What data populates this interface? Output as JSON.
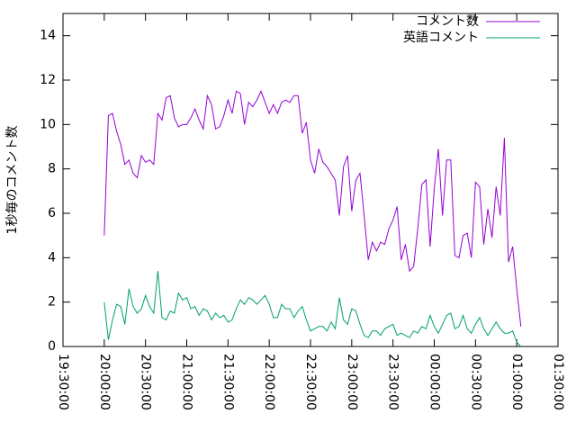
{
  "chart_data": {
    "type": "line",
    "ylabel": "1秒毎のコメント数",
    "x": [
      "20:00:00",
      "20:03:00",
      "20:06:00",
      "20:09:00",
      "20:12:00",
      "20:15:00",
      "20:18:00",
      "20:21:00",
      "20:24:00",
      "20:27:00",
      "20:30:00",
      "20:33:00",
      "20:36:00",
      "20:39:00",
      "20:42:00",
      "20:45:00",
      "20:48:00",
      "20:51:00",
      "20:54:00",
      "20:57:00",
      "21:00:00",
      "21:03:00",
      "21:06:00",
      "21:09:00",
      "21:12:00",
      "21:15:00",
      "21:18:00",
      "21:21:00",
      "21:24:00",
      "21:27:00",
      "21:30:00",
      "21:33:00",
      "21:36:00",
      "21:39:00",
      "21:42:00",
      "21:45:00",
      "21:48:00",
      "21:51:00",
      "21:54:00",
      "21:57:00",
      "22:00:00",
      "22:03:00",
      "22:06:00",
      "22:09:00",
      "22:12:00",
      "22:15:00",
      "22:18:00",
      "22:21:00",
      "22:24:00",
      "22:27:00",
      "22:30:00",
      "22:33:00",
      "22:36:00",
      "22:39:00",
      "22:42:00",
      "22:45:00",
      "22:48:00",
      "22:51:00",
      "22:54:00",
      "22:57:00",
      "23:00:00",
      "23:03:00",
      "23:06:00",
      "23:09:00",
      "23:12:00",
      "23:15:00",
      "23:18:00",
      "23:21:00",
      "23:24:00",
      "23:27:00",
      "23:30:00",
      "23:33:00",
      "23:36:00",
      "23:39:00",
      "23:42:00",
      "23:45:00",
      "23:48:00",
      "23:51:00",
      "23:54:00",
      "23:57:00",
      "00:00:00",
      "00:03:00",
      "00:06:00",
      "00:09:00",
      "00:12:00",
      "00:15:00",
      "00:18:00",
      "00:21:00",
      "00:24:00",
      "00:27:00",
      "00:30:00",
      "00:33:00",
      "00:36:00",
      "00:39:00",
      "00:42:00",
      "00:45:00",
      "00:48:00",
      "00:51:00",
      "00:54:00",
      "00:57:00",
      "01:00:00",
      "01:03:00"
    ],
    "series": [
      {
        "name": "コメント数",
        "color": "#9400d3",
        "values": [
          5.0,
          10.4,
          10.5,
          9.7,
          9.1,
          8.2,
          8.4,
          7.8,
          7.6,
          8.6,
          8.3,
          8.4,
          8.2,
          10.5,
          10.2,
          11.2,
          11.3,
          10.3,
          9.9,
          10.0,
          10.0,
          10.3,
          10.7,
          10.2,
          9.8,
          11.3,
          10.9,
          9.8,
          9.9,
          10.4,
          11.1,
          10.5,
          11.5,
          11.4,
          10.0,
          11.0,
          10.8,
          11.1,
          11.5,
          11.0,
          10.5,
          10.9,
          10.5,
          11.0,
          11.1,
          11.0,
          11.3,
          11.3,
          9.6,
          10.1,
          8.4,
          7.8,
          8.9,
          8.3,
          8.1,
          7.8,
          7.5,
          5.9,
          8.1,
          8.6,
          6.1,
          7.5,
          7.8,
          5.9,
          3.9,
          4.7,
          4.3,
          4.7,
          4.6,
          5.3,
          5.7,
          6.3,
          3.9,
          4.6,
          3.4,
          3.6,
          5.3,
          7.3,
          7.5,
          4.5,
          7.1,
          8.9,
          5.9,
          8.4,
          8.4,
          4.1,
          4.0,
          5.0,
          5.1,
          4.0,
          7.4,
          7.2,
          4.6,
          6.2,
          4.9,
          7.2,
          5.9,
          9.4,
          3.8,
          4.5,
          2.6,
          0.9
        ]
      },
      {
        "name": "英語コメント",
        "color": "#009e73",
        "values": [
          2.0,
          0.3,
          1.2,
          1.9,
          1.8,
          1.0,
          2.6,
          1.8,
          1.5,
          1.7,
          2.3,
          1.8,
          1.5,
          3.4,
          1.3,
          1.2,
          1.6,
          1.5,
          2.4,
          2.1,
          2.2,
          1.7,
          1.8,
          1.4,
          1.7,
          1.6,
          1.2,
          1.5,
          1.3,
          1.4,
          1.1,
          1.2,
          1.7,
          2.1,
          1.9,
          2.2,
          2.1,
          1.9,
          2.1,
          2.3,
          1.9,
          1.3,
          1.3,
          1.9,
          1.7,
          1.7,
          1.3,
          1.6,
          1.8,
          1.2,
          0.7,
          0.8,
          0.9,
          0.9,
          0.7,
          1.1,
          0.8,
          2.2,
          1.2,
          1.0,
          1.7,
          1.6,
          1.0,
          0.5,
          0.4,
          0.7,
          0.7,
          0.5,
          0.8,
          0.9,
          1.0,
          0.5,
          0.6,
          0.5,
          0.4,
          0.7,
          0.6,
          0.9,
          0.8,
          1.4,
          0.9,
          0.6,
          1.0,
          1.4,
          1.5,
          0.8,
          0.9,
          1.4,
          0.8,
          0.6,
          1.0,
          1.3,
          0.8,
          0.5,
          0.8,
          1.1,
          0.8,
          0.6,
          0.6,
          0.7,
          0.2,
          0.0
        ]
      }
    ],
    "xlim": [
      "19:30:00",
      "01:30:00"
    ],
    "xticks": [
      "19:30:00",
      "20:00:00",
      "20:30:00",
      "21:00:00",
      "21:30:00",
      "22:00:00",
      "22:30:00",
      "23:00:00",
      "23:30:00",
      "00:00:00",
      "00:30:00",
      "01:00:00",
      "01:30:00"
    ],
    "ylim": [
      0,
      15
    ],
    "yticks": [
      0,
      2,
      4,
      6,
      8,
      10,
      12,
      14
    ],
    "legend": "top-right"
  }
}
